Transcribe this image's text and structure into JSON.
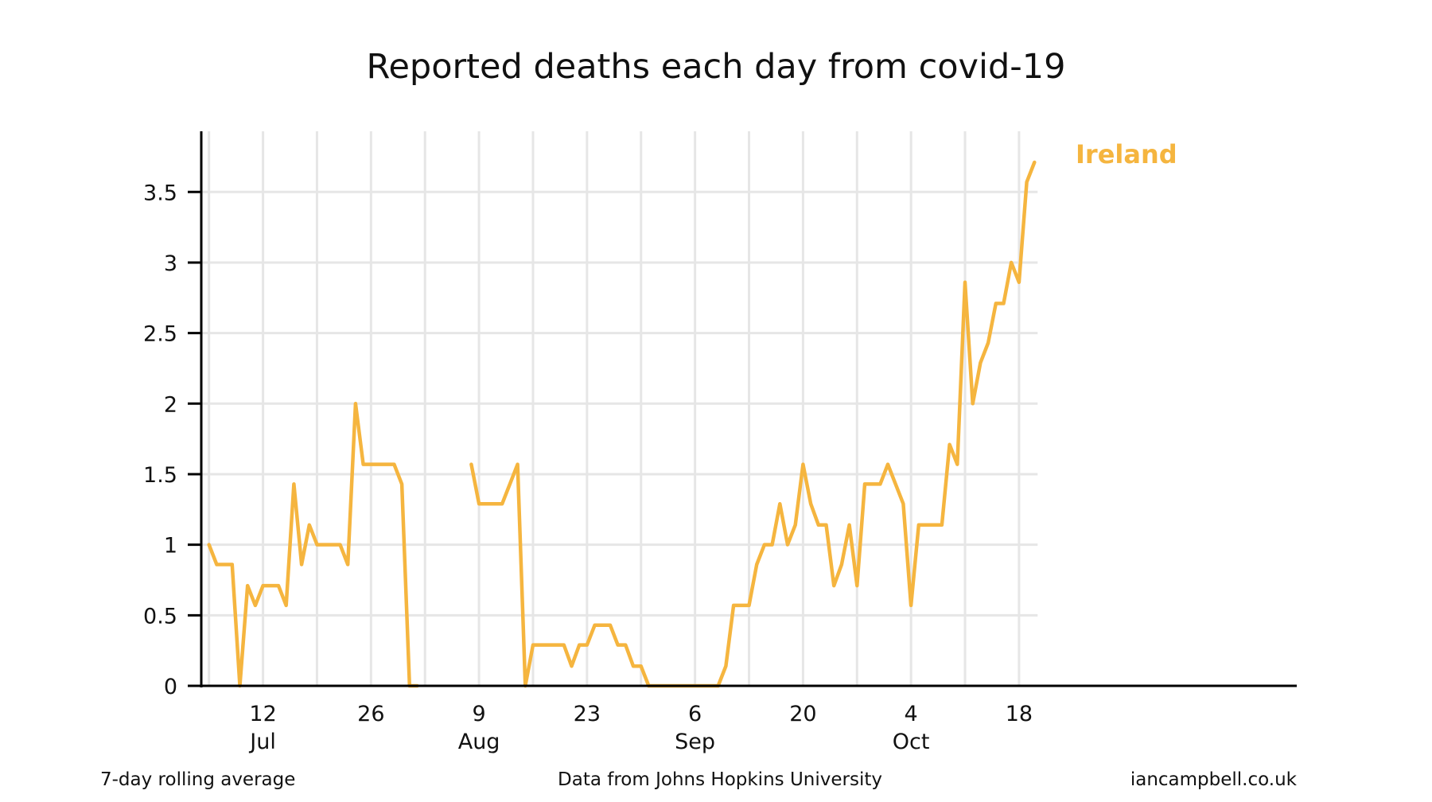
{
  "chart_data": {
    "type": "line",
    "title": "Reported deaths each day from covid-19",
    "xlabel": "",
    "ylabel": "",
    "x_start_date": "2020-07-05",
    "xlim_dates": [
      "2020-07-04",
      "2020-11-23"
    ],
    "ylim": [
      0,
      3.93
    ],
    "y_ticks": [
      {
        "value": 0,
        "label": "0"
      },
      {
        "value": 0.5,
        "label": "0.5"
      },
      {
        "value": 1,
        "label": "1"
      },
      {
        "value": 1.5,
        "label": "1.5"
      },
      {
        "value": 2,
        "label": "2"
      },
      {
        "value": 2.5,
        "label": "2.5"
      },
      {
        "value": 3,
        "label": "3"
      },
      {
        "value": 3.5,
        "label": "3.5"
      }
    ],
    "x_ticks": [
      {
        "date": "2020-07-12",
        "day": "12",
        "month": "Jul"
      },
      {
        "date": "2020-07-26",
        "day": "26",
        "month": ""
      },
      {
        "date": "2020-08-09",
        "day": "9",
        "month": "Aug"
      },
      {
        "date": "2020-08-23",
        "day": "23",
        "month": ""
      },
      {
        "date": "2020-09-06",
        "day": "6",
        "month": "Sep"
      },
      {
        "date": "2020-09-20",
        "day": "20",
        "month": ""
      },
      {
        "date": "2020-10-04",
        "day": "4",
        "month": "Oct"
      },
      {
        "date": "2020-10-18",
        "day": "18",
        "month": ""
      }
    ],
    "week_gridline_dates": [
      "2020-07-05",
      "2020-07-12",
      "2020-07-19",
      "2020-07-26",
      "2020-08-02",
      "2020-08-09",
      "2020-08-16",
      "2020-08-23",
      "2020-08-30",
      "2020-09-06",
      "2020-09-13",
      "2020-09-20",
      "2020-09-27",
      "2020-10-04",
      "2020-10-11",
      "2020-10-18"
    ],
    "grid": true,
    "legend": "label at end of line, top-right",
    "series": [
      {
        "name": "Ireland",
        "color": "#f5b53f",
        "values": [
          1.0,
          0.86,
          0.86,
          0.86,
          0.0,
          0.71,
          0.57,
          0.71,
          0.71,
          0.71,
          0.57,
          1.43,
          0.86,
          1.14,
          1.0,
          1.0,
          1.0,
          1.0,
          0.86,
          2.0,
          1.57,
          1.57,
          1.57,
          1.57,
          1.57,
          1.43,
          0.0,
          0.0,
          null,
          null,
          null,
          null,
          null,
          null,
          1.57,
          1.29,
          1.29,
          1.29,
          1.29,
          1.43,
          1.57,
          0.0,
          0.29,
          0.29,
          0.29,
          0.29,
          0.29,
          0.14,
          0.29,
          0.29,
          0.43,
          0.43,
          0.43,
          0.29,
          0.29,
          0.14,
          0.14,
          0.0,
          0.0,
          0.0,
          0.0,
          0.0,
          0.0,
          0.0,
          0.0,
          0.0,
          0.0,
          0.14,
          0.57,
          0.57,
          0.57,
          0.86,
          1.0,
          1.0,
          1.29,
          1.0,
          1.14,
          1.57,
          1.29,
          1.14,
          1.14,
          0.71,
          0.86,
          1.14,
          0.71,
          1.43,
          1.43,
          1.43,
          1.57,
          1.43,
          1.29,
          0.57,
          1.14,
          1.14,
          1.14,
          1.14,
          1.71,
          1.57,
          2.86,
          2.0,
          2.29,
          2.43,
          2.71,
          2.71,
          3.0,
          2.86,
          3.57,
          3.71
        ]
      }
    ]
  },
  "footer": {
    "left": "7-day rolling average",
    "center": "Data from Johns Hopkins University",
    "right": "iancampbell.co.uk"
  },
  "colors": {
    "series": "#f5b53f",
    "grid": "#e6e6e6",
    "axis": "#000000"
  }
}
